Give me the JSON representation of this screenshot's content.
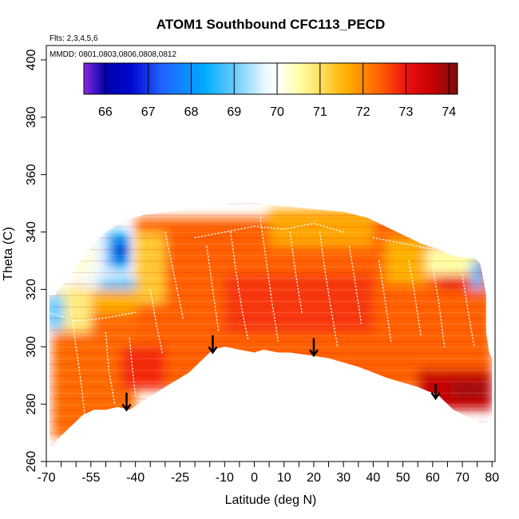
{
  "chart_data": {
    "type": "heatmap",
    "title": "ATOM1 Southbound CFC113_PECD",
    "annotations": {
      "flights": "Flts: 2,3,4,5,6",
      "dates": "MMDD: 0801,0803,0806,0808,0812"
    },
    "xlabel": "Latitude (deg N)",
    "ylabel": "Theta (C)",
    "xlim": [
      -70,
      81
    ],
    "ylim": [
      260,
      405
    ],
    "x_tick_labels": [
      {
        "value": -70,
        "label": "-70"
      },
      {
        "value": -55,
        "label": "-55"
      },
      {
        "value": -40,
        "label": "-40"
      },
      {
        "value": -25,
        "label": "-25"
      },
      {
        "value": -10,
        "label": "-10"
      },
      {
        "value": 0,
        "label": "0"
      },
      {
        "value": 10,
        "label": "10"
      },
      {
        "value": 20,
        "label": "20"
      },
      {
        "value": 30,
        "label": "30"
      },
      {
        "value": 40,
        "label": "40"
      },
      {
        "value": 50,
        "label": "50"
      },
      {
        "value": 60,
        "label": "60"
      },
      {
        "value": 70,
        "label": "70"
      },
      {
        "value": 80,
        "label": "80"
      }
    ],
    "x_minor_ticks": [
      -65,
      -60,
      -50,
      -45,
      -35,
      -30,
      -20,
      -15,
      -5,
      5,
      15,
      25,
      35,
      45,
      55,
      65,
      75
    ],
    "y_tick_labels": [
      {
        "value": 260,
        "label": "260"
      },
      {
        "value": 280,
        "label": "280"
      },
      {
        "value": 300,
        "label": "300"
      },
      {
        "value": 320,
        "label": "320"
      },
      {
        "value": 340,
        "label": "340"
      },
      {
        "value": 360,
        "label": "360"
      },
      {
        "value": 380,
        "label": "380"
      },
      {
        "value": 400,
        "label": "400"
      }
    ],
    "colorbar": {
      "range": [
        65.5,
        74.2
      ],
      "tick_labels": [
        {
          "value": 66,
          "label": "66"
        },
        {
          "value": 67,
          "label": "67"
        },
        {
          "value": 68,
          "label": "68"
        },
        {
          "value": 69,
          "label": "69"
        },
        {
          "value": 70,
          "label": "70"
        },
        {
          "value": 71,
          "label": "71"
        },
        {
          "value": 72,
          "label": "72"
        },
        {
          "value": 73,
          "label": "73"
        },
        {
          "value": 74,
          "label": "74"
        }
      ],
      "stops": [
        {
          "value": 65.5,
          "color": "#8a2be2"
        },
        {
          "value": 66.0,
          "color": "#0000aa"
        },
        {
          "value": 66.6,
          "color": "#0008d0"
        },
        {
          "value": 67.3,
          "color": "#2060ff"
        },
        {
          "value": 68.3,
          "color": "#00aaff"
        },
        {
          "value": 69.0,
          "color": "#66ccff"
        },
        {
          "value": 69.7,
          "color": "#e8f6ff"
        },
        {
          "value": 70.0,
          "color": "#ffffff"
        },
        {
          "value": 70.5,
          "color": "#ffffa8"
        },
        {
          "value": 71.0,
          "color": "#ffe060"
        },
        {
          "value": 71.6,
          "color": "#ffb000"
        },
        {
          "value": 72.4,
          "color": "#ff6000"
        },
        {
          "value": 73.0,
          "color": "#ee1010"
        },
        {
          "value": 73.6,
          "color": "#c80000"
        },
        {
          "value": 74.2,
          "color": "#7a1010"
        }
      ]
    },
    "curtain_top": [
      [
        -69,
        318
      ],
      [
        -67,
        318
      ],
      [
        -66,
        320
      ],
      [
        -63,
        323
      ],
      [
        -61,
        326
      ],
      [
        -58,
        330
      ],
      [
        -54,
        336
      ],
      [
        -50,
        340
      ],
      [
        -44,
        344
      ],
      [
        -37,
        346
      ],
      [
        -29,
        347
      ],
      [
        -20,
        348
      ],
      [
        -12,
        349
      ],
      [
        -5,
        351
      ],
      [
        0,
        350
      ],
      [
        10,
        349
      ],
      [
        20,
        348
      ],
      [
        30,
        347
      ],
      [
        38,
        345
      ],
      [
        44,
        342
      ],
      [
        50,
        339
      ],
      [
        56,
        336
      ],
      [
        62,
        334
      ],
      [
        66,
        332
      ],
      [
        70,
        331
      ],
      [
        74,
        331
      ],
      [
        76,
        329
      ],
      [
        77,
        324
      ],
      [
        78,
        318
      ],
      [
        78,
        305
      ],
      [
        79,
        298
      ],
      [
        80,
        296
      ]
    ],
    "curtain_bottom": [
      [
        80,
        275
      ],
      [
        77,
        273
      ],
      [
        73,
        275
      ],
      [
        67,
        278
      ],
      [
        62,
        283
      ],
      [
        55,
        286
      ],
      [
        45,
        289
      ],
      [
        35,
        293
      ],
      [
        25,
        296
      ],
      [
        19,
        297
      ],
      [
        12,
        298
      ],
      [
        8,
        298
      ],
      [
        3,
        299
      ],
      [
        0,
        298
      ],
      [
        -5,
        299
      ],
      [
        -10,
        300
      ],
      [
        -14,
        299
      ],
      [
        -17,
        296
      ],
      [
        -22,
        291
      ],
      [
        -30,
        286
      ],
      [
        -36,
        282
      ],
      [
        -42,
        278
      ],
      [
        -46,
        279
      ],
      [
        -50,
        278
      ],
      [
        -54,
        278
      ],
      [
        -58,
        276
      ],
      [
        -63,
        271
      ],
      [
        -66,
        268
      ],
      [
        -68,
        265
      ],
      [
        -69,
        268
      ]
    ],
    "regions": [
      {
        "lat": [
          -40,
          80
        ],
        "theta": [
          285,
          345
        ],
        "value": 72.4
      },
      {
        "lat": [
          -68,
          -40
        ],
        "theta": [
          268,
          312
        ],
        "value": 72.3
      },
      {
        "lat": [
          -60,
          -40
        ],
        "theta": [
          312,
          322
        ],
        "value": 71.6
      },
      {
        "lat": [
          -68,
          -55
        ],
        "theta": [
          305,
          320
        ],
        "value": 70.8
      },
      {
        "lat": [
          -58,
          -48
        ],
        "theta": [
          320,
          338
        ],
        "value": 69.8
      },
      {
        "lat": [
          -50,
          -42
        ],
        "theta": [
          327,
          340
        ],
        "value": 68.3
      },
      {
        "lat": [
          -47,
          -43
        ],
        "theta": [
          330,
          337
        ],
        "value": 66.5
      },
      {
        "lat": [
          -52,
          -36
        ],
        "theta": [
          320,
          324
        ],
        "value": 68.8
      },
      {
        "lat": [
          -40,
          -30
        ],
        "theta": [
          315,
          340
        ],
        "value": 71.3
      },
      {
        "lat": [
          -70,
          -64
        ],
        "theta": [
          306,
          318
        ],
        "value": 69.0
      },
      {
        "lat": [
          -10,
          40
        ],
        "theta": [
          305,
          325
        ],
        "value": 72.7
      },
      {
        "lat": [
          55,
          80
        ],
        "theta": [
          278,
          292
        ],
        "value": 73.6
      },
      {
        "lat": [
          66,
          79
        ],
        "theta": [
          282,
          288
        ],
        "value": 73.9
      },
      {
        "lat": [
          62,
          72
        ],
        "theta": [
          320,
          330
        ],
        "value": 73.1
      },
      {
        "lat": [
          -45,
          -30
        ],
        "theta": [
          285,
          300
        ],
        "value": 72.8
      },
      {
        "lat": [
          5,
          40
        ],
        "theta": [
          335,
          348
        ],
        "value": 71.7
      },
      {
        "lat": [
          44,
          58
        ],
        "theta": [
          322,
          338
        ],
        "value": 71.6
      },
      {
        "lat": [
          58,
          76
        ],
        "theta": [
          325,
          335
        ],
        "value": 70.5
      },
      {
        "lat": [
          73,
          77
        ],
        "theta": [
          320,
          330
        ],
        "value": 68.6
      },
      {
        "lat": [
          -64,
          -54
        ],
        "theta": [
          325,
          336
        ],
        "value": 70.2
      }
    ],
    "flight_tracks": [
      [
        [
          -62,
          315
        ],
        [
          -60,
          300
        ],
        [
          -58,
          285
        ],
        [
          -57,
          275
        ]
      ],
      [
        [
          -50,
          305
        ],
        [
          -49,
          292
        ],
        [
          -47,
          280
        ]
      ],
      [
        [
          -42,
          303
        ],
        [
          -41,
          292
        ],
        [
          -40,
          283
        ]
      ],
      [
        [
          -35,
          320
        ],
        [
          -33,
          308
        ],
        [
          -31,
          298
        ]
      ],
      [
        [
          -30,
          340
        ],
        [
          -28,
          330
        ],
        [
          -26,
          320
        ],
        [
          -24,
          310
        ]
      ],
      [
        [
          -16,
          335
        ],
        [
          -14,
          320
        ],
        [
          -12,
          305
        ]
      ],
      [
        [
          -8,
          340
        ],
        [
          -6,
          325
        ],
        [
          -4,
          312
        ],
        [
          -2,
          302
        ]
      ],
      [
        [
          2,
          345
        ],
        [
          4,
          330
        ],
        [
          6,
          315
        ],
        [
          8,
          302
        ]
      ],
      [
        [
          12,
          340
        ],
        [
          14,
          325
        ],
        [
          16,
          312
        ]
      ],
      [
        [
          22,
          340
        ],
        [
          24,
          325
        ],
        [
          26,
          312
        ],
        [
          28,
          300
        ]
      ],
      [
        [
          32,
          335
        ],
        [
          34,
          322
        ],
        [
          36,
          308
        ]
      ],
      [
        [
          42,
          330
        ],
        [
          44,
          316
        ],
        [
          46,
          302
        ]
      ],
      [
        [
          52,
          330
        ],
        [
          54,
          318
        ],
        [
          56,
          304
        ]
      ],
      [
        [
          60,
          328
        ],
        [
          62,
          316
        ],
        [
          64,
          300
        ]
      ],
      [
        [
          70,
          325
        ],
        [
          72,
          312
        ],
        [
          74,
          300
        ]
      ],
      [
        [
          -70,
          312
        ],
        [
          -60,
          309
        ],
        [
          -50,
          310
        ],
        [
          -40,
          312
        ]
      ],
      [
        [
          -20,
          338
        ],
        [
          -10,
          340
        ],
        [
          0,
          342
        ],
        [
          10,
          341
        ],
        [
          20,
          343
        ],
        [
          30,
          340
        ]
      ],
      [
        [
          40,
          338
        ],
        [
          50,
          336
        ],
        [
          60,
          334
        ],
        [
          70,
          333
        ]
      ]
    ],
    "arrows": [
      {
        "lat": -43,
        "theta_top": 284,
        "theta_tip": 278
      },
      {
        "lat": -14,
        "theta_top": 304,
        "theta_tip": 298
      },
      {
        "lat": 20,
        "theta_top": 303,
        "theta_tip": 297
      },
      {
        "lat": 61,
        "theta_top": 287,
        "theta_tip": 282
      }
    ]
  }
}
